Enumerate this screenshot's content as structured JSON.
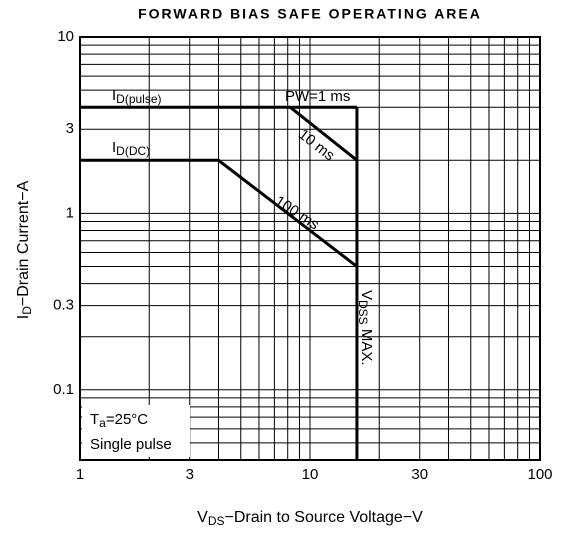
{
  "chart_data": {
    "type": "line",
    "title": "FORWARD BIAS SAFE OPERATING AREA",
    "x_label": {
      "main": "V",
      "sub": "DS",
      "rest": "−Drain to Source Voltage−V"
    },
    "y_label": {
      "main": "I",
      "sub": "D",
      "rest": "−Drain Current−A"
    },
    "xlog": true,
    "ylog": true,
    "xlim": [
      1,
      100
    ],
    "ylim": [
      0.04,
      10
    ],
    "xticks": [
      1,
      3,
      10,
      30,
      100
    ],
    "yticks": [
      10,
      3,
      1,
      0.3,
      0.1
    ],
    "xgrid": [
      2,
      3,
      4,
      5,
      6,
      7,
      8,
      9,
      10,
      20,
      30,
      40,
      50,
      60,
      70,
      80,
      90
    ],
    "ygrid": [
      0.05,
      0.06,
      0.07,
      0.08,
      0.09,
      0.1,
      0.2,
      0.3,
      0.4,
      0.5,
      0.6,
      0.7,
      0.8,
      0.9,
      1,
      2,
      3,
      4,
      5,
      6,
      7,
      8,
      9
    ],
    "grid": true,
    "series": [
      {
        "color": "#000000",
        "x": [
          1,
          16
        ],
        "values": [
          4,
          4
        ]
      },
      {
        "color": "#000000",
        "x": [
          8.2,
          16
        ],
        "values": [
          4,
          2
        ]
      },
      {
        "color": "#000000",
        "x": [
          1,
          4,
          16
        ],
        "values": [
          2,
          2,
          0.5
        ]
      },
      {
        "color": "#000000",
        "x": [
          16,
          16
        ],
        "values": [
          4,
          0.04
        ]
      }
    ],
    "annotations": [
      {
        "main": "I",
        "sub": "D(pulse)"
      },
      {
        "main": "PW=1 ms"
      },
      {
        "main": "10 ms"
      },
      {
        "main": "I",
        "sub": "D(DC)"
      },
      {
        "main": "100 ms"
      },
      {
        "main": "V",
        "sub": "DSS",
        "rest": " MAX."
      },
      {
        "main": "T",
        "sub": "a",
        "rest": "=25°C"
      },
      {
        "main": "Single pulse"
      }
    ]
  }
}
